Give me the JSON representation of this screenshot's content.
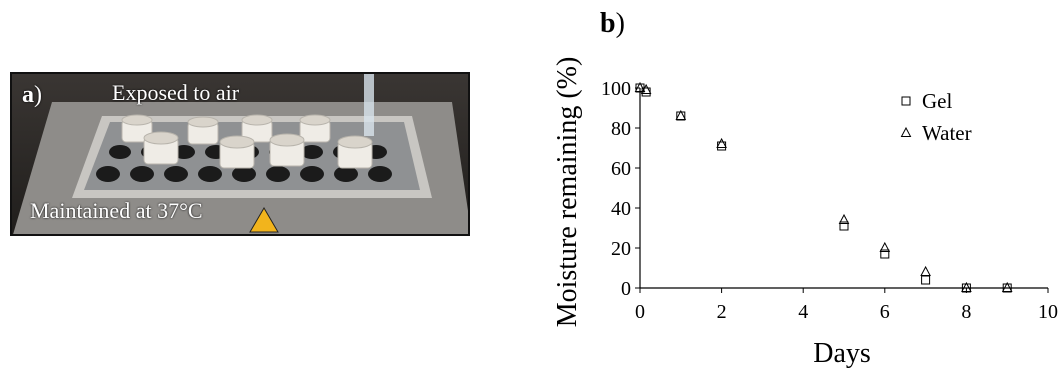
{
  "panel_a": {
    "letter": "a",
    "paren": ")",
    "top_label": "Exposed to air",
    "bottom_label": "Maintained at 37°C",
    "colors": {
      "tray": "#9a9a98",
      "frame": "#c8c6c2",
      "cup": "#efece6",
      "background": "#2d2a27"
    }
  },
  "panel_b": {
    "letter": "b",
    "paren": ")"
  },
  "chart_data": {
    "type": "scatter",
    "title": "",
    "xlabel": "Days",
    "ylabel": "Moisture remaining (%)",
    "xlim": [
      0,
      10
    ],
    "ylim": [
      0,
      100
    ],
    "xticks": [
      "0",
      "2",
      "4",
      "6",
      "8",
      "10"
    ],
    "yticks": [
      "0",
      "20",
      "40",
      "60",
      "80",
      "100"
    ],
    "grid": false,
    "legend_position": "top-right",
    "series": [
      {
        "name": "Gel",
        "marker": "square",
        "x": [
          0,
          0.15,
          1,
          2,
          5,
          6,
          7,
          8,
          9
        ],
        "y": [
          100,
          98,
          86,
          71,
          31,
          17,
          4,
          0,
          0
        ]
      },
      {
        "name": "Water",
        "marker": "triangle",
        "x": [
          0,
          0.15,
          1,
          2,
          5,
          6,
          7,
          8,
          9
        ],
        "y": [
          100,
          99,
          86,
          72,
          34,
          20,
          8,
          0,
          0
        ]
      }
    ]
  }
}
